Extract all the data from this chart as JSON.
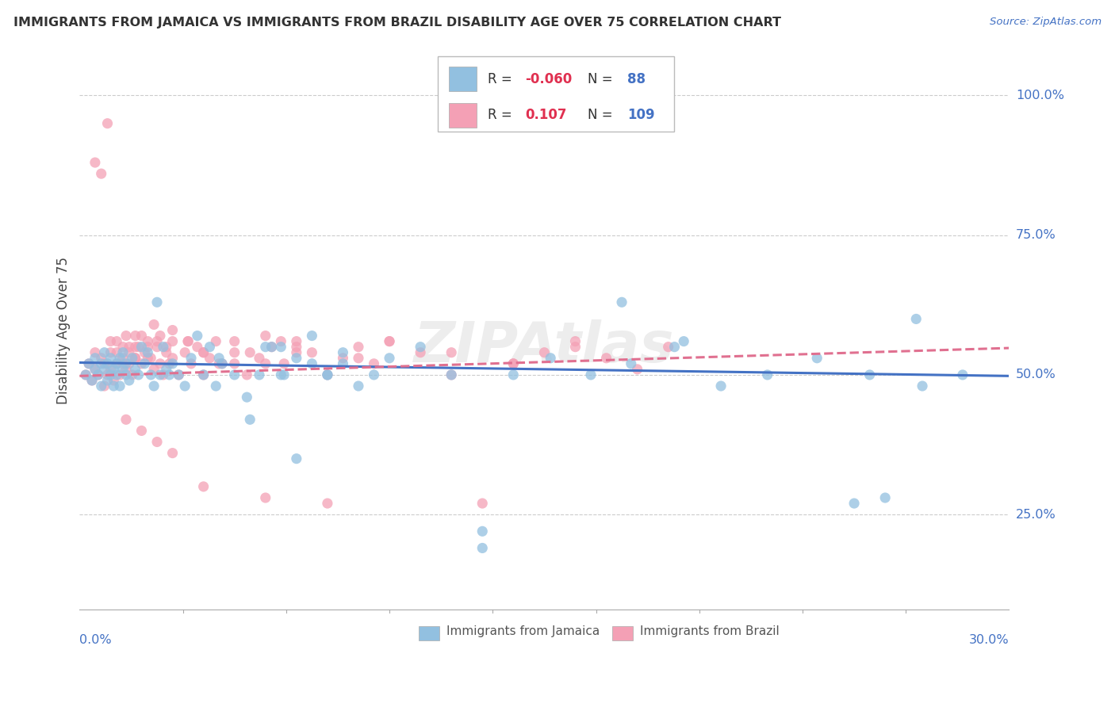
{
  "title": "IMMIGRANTS FROM JAMAICA VS IMMIGRANTS FROM BRAZIL DISABILITY AGE OVER 75 CORRELATION CHART",
  "source": "Source: ZipAtlas.com",
  "ylabel": "Disability Age Over 75",
  "xlim": [
    0.0,
    0.3
  ],
  "ylim": [
    0.08,
    1.08
  ],
  "ytick_vals": [
    0.25,
    0.5,
    0.75,
    1.0
  ],
  "ytick_labels": [
    "25.0%",
    "50.0%",
    "75.0%",
    "100.0%"
  ],
  "color_jamaica": "#92c0e0",
  "color_brazil": "#f4a0b5",
  "line_color_jamaica": "#4472c4",
  "line_color_brazil": "#e07090",
  "background_color": "#ffffff",
  "grid_color": "#cccccc",
  "trend_jamaica": [
    0.522,
    0.498
  ],
  "trend_brazil": [
    0.498,
    0.548
  ],
  "jamaica_x": [
    0.002,
    0.003,
    0.004,
    0.005,
    0.005,
    0.006,
    0.007,
    0.007,
    0.008,
    0.008,
    0.009,
    0.009,
    0.01,
    0.01,
    0.011,
    0.011,
    0.012,
    0.012,
    0.013,
    0.013,
    0.014,
    0.014,
    0.015,
    0.015,
    0.016,
    0.017,
    0.018,
    0.019,
    0.02,
    0.021,
    0.022,
    0.023,
    0.024,
    0.025,
    0.026,
    0.027,
    0.028,
    0.029,
    0.03,
    0.032,
    0.034,
    0.036,
    0.038,
    0.04,
    0.042,
    0.044,
    0.046,
    0.05,
    0.054,
    0.058,
    0.062,
    0.066,
    0.07,
    0.075,
    0.08,
    0.085,
    0.09,
    0.095,
    0.1,
    0.11,
    0.12,
    0.13,
    0.14,
    0.152,
    0.165,
    0.178,
    0.192,
    0.207,
    0.222,
    0.238,
    0.255,
    0.272,
    0.065,
    0.07,
    0.075,
    0.08,
    0.085,
    0.175,
    0.25,
    0.27,
    0.285,
    0.06,
    0.13,
    0.195,
    0.26,
    0.045,
    0.055,
    0.065
  ],
  "jamaica_y": [
    0.5,
    0.52,
    0.49,
    0.51,
    0.53,
    0.5,
    0.52,
    0.48,
    0.51,
    0.54,
    0.49,
    0.52,
    0.5,
    0.53,
    0.51,
    0.48,
    0.52,
    0.5,
    0.53,
    0.48,
    0.51,
    0.54,
    0.5,
    0.52,
    0.49,
    0.53,
    0.51,
    0.5,
    0.55,
    0.52,
    0.54,
    0.5,
    0.48,
    0.63,
    0.5,
    0.55,
    0.51,
    0.5,
    0.52,
    0.5,
    0.48,
    0.53,
    0.57,
    0.5,
    0.55,
    0.48,
    0.52,
    0.5,
    0.46,
    0.5,
    0.55,
    0.5,
    0.35,
    0.52,
    0.5,
    0.54,
    0.48,
    0.5,
    0.53,
    0.55,
    0.5,
    0.22,
    0.5,
    0.53,
    0.5,
    0.52,
    0.55,
    0.48,
    0.5,
    0.53,
    0.5,
    0.48,
    0.55,
    0.53,
    0.57,
    0.5,
    0.52,
    0.63,
    0.27,
    0.6,
    0.5,
    0.55,
    0.19,
    0.56,
    0.28,
    0.53,
    0.42,
    0.5
  ],
  "brazil_x": [
    0.002,
    0.003,
    0.004,
    0.005,
    0.005,
    0.006,
    0.007,
    0.008,
    0.008,
    0.009,
    0.01,
    0.01,
    0.011,
    0.012,
    0.012,
    0.013,
    0.014,
    0.014,
    0.015,
    0.016,
    0.016,
    0.017,
    0.018,
    0.018,
    0.019,
    0.02,
    0.021,
    0.022,
    0.023,
    0.024,
    0.025,
    0.026,
    0.027,
    0.028,
    0.029,
    0.03,
    0.032,
    0.034,
    0.036,
    0.038,
    0.04,
    0.042,
    0.044,
    0.046,
    0.05,
    0.054,
    0.058,
    0.062,
    0.066,
    0.07,
    0.075,
    0.08,
    0.085,
    0.09,
    0.095,
    0.1,
    0.11,
    0.12,
    0.13,
    0.14,
    0.15,
    0.16,
    0.17,
    0.18,
    0.19,
    0.01,
    0.012,
    0.014,
    0.016,
    0.018,
    0.02,
    0.022,
    0.024,
    0.026,
    0.028,
    0.03,
    0.035,
    0.04,
    0.045,
    0.05,
    0.055,
    0.06,
    0.065,
    0.07,
    0.015,
    0.018,
    0.022,
    0.025,
    0.03,
    0.035,
    0.04,
    0.05,
    0.06,
    0.07,
    0.08,
    0.09,
    0.1,
    0.12,
    0.14,
    0.16,
    0.005,
    0.007,
    0.009,
    0.015,
    0.02,
    0.025,
    0.03,
    0.04,
    0.06
  ],
  "brazil_y": [
    0.5,
    0.52,
    0.49,
    0.51,
    0.54,
    0.5,
    0.53,
    0.48,
    0.52,
    0.5,
    0.51,
    0.54,
    0.49,
    0.52,
    0.56,
    0.5,
    0.55,
    0.53,
    0.51,
    0.54,
    0.52,
    0.5,
    0.53,
    0.57,
    0.55,
    0.52,
    0.54,
    0.56,
    0.53,
    0.51,
    0.55,
    0.52,
    0.5,
    0.54,
    0.52,
    0.56,
    0.5,
    0.54,
    0.52,
    0.55,
    0.5,
    0.53,
    0.56,
    0.52,
    0.54,
    0.5,
    0.53,
    0.55,
    0.52,
    0.56,
    0.54,
    0.5,
    0.53,
    0.55,
    0.52,
    0.56,
    0.54,
    0.5,
    0.27,
    0.52,
    0.54,
    0.56,
    0.53,
    0.51,
    0.55,
    0.56,
    0.54,
    0.52,
    0.55,
    0.53,
    0.57,
    0.55,
    0.59,
    0.57,
    0.55,
    0.53,
    0.56,
    0.54,
    0.52,
    0.56,
    0.54,
    0.52,
    0.56,
    0.54,
    0.57,
    0.55,
    0.53,
    0.56,
    0.58,
    0.56,
    0.54,
    0.52,
    0.57,
    0.55,
    0.27,
    0.53,
    0.56,
    0.54,
    0.52,
    0.55,
    0.88,
    0.86,
    0.95,
    0.42,
    0.4,
    0.38,
    0.36,
    0.3,
    0.28
  ]
}
